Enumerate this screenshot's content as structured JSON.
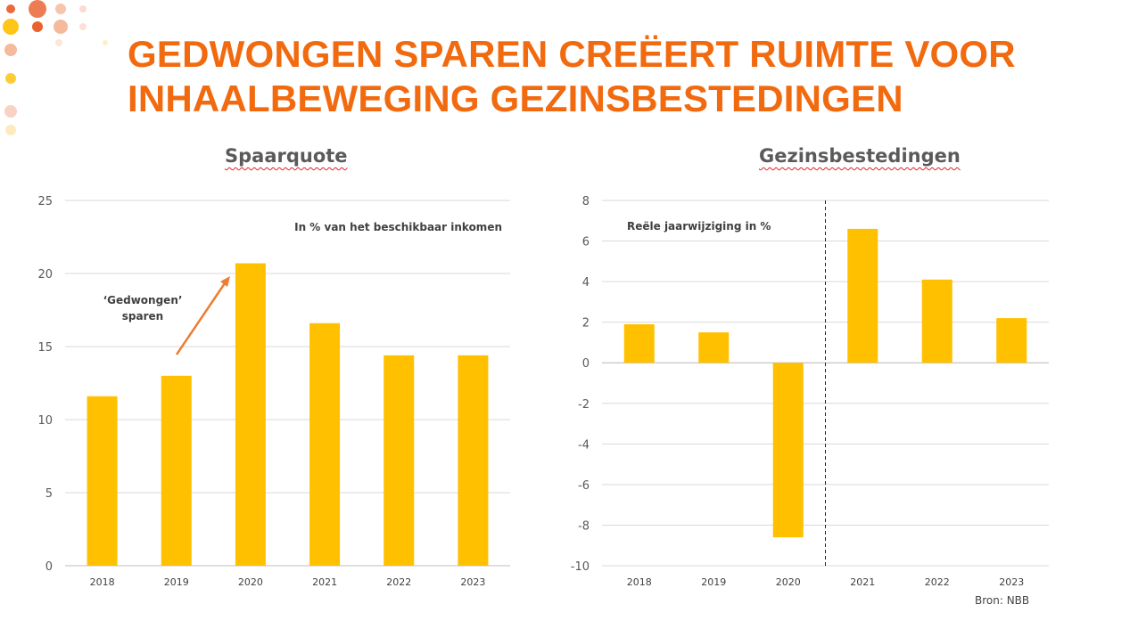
{
  "slide": {
    "title_line1": "GEDWONGEN SPAREN CREËERT RUIMTE VOOR",
    "title_line2": "INHAALBEWEGING GEZINSBESTEDINGEN",
    "source": "Bron: NBB"
  },
  "colors": {
    "title": "#f26a0f",
    "bar": "#ffc000",
    "arrow": "#ed7d31",
    "gridline": "#d9d9d9",
    "text": "#595959"
  },
  "chart_data": [
    {
      "type": "bar",
      "title": "Spaarquote",
      "annotation": "In % van het beschikbaar inkomen",
      "callout": [
        "‘Gedwongen’",
        "sparen"
      ],
      "categories": [
        "2018",
        "2019",
        "2020",
        "2021",
        "2022",
        "2023"
      ],
      "values": [
        11.6,
        13.0,
        20.7,
        16.6,
        14.4,
        14.4
      ],
      "ylim": [
        0,
        25
      ],
      "yticks": [
        0,
        5,
        10,
        15,
        20,
        25
      ],
      "grid": true
    },
    {
      "type": "bar",
      "title": "Gezinsbestedingen",
      "annotation": "Reële jaarwijziging in %",
      "categories": [
        "2018",
        "2019",
        "2020",
        "2021",
        "2022",
        "2023"
      ],
      "values": [
        1.9,
        1.5,
        -8.6,
        6.6,
        4.1,
        2.2
      ],
      "ylim": [
        -10,
        8
      ],
      "yticks": [
        -10,
        -8,
        -6,
        -4,
        -2,
        0,
        2,
        4,
        6,
        8
      ],
      "grid": true,
      "divider_between": [
        "2020",
        "2021"
      ]
    }
  ]
}
